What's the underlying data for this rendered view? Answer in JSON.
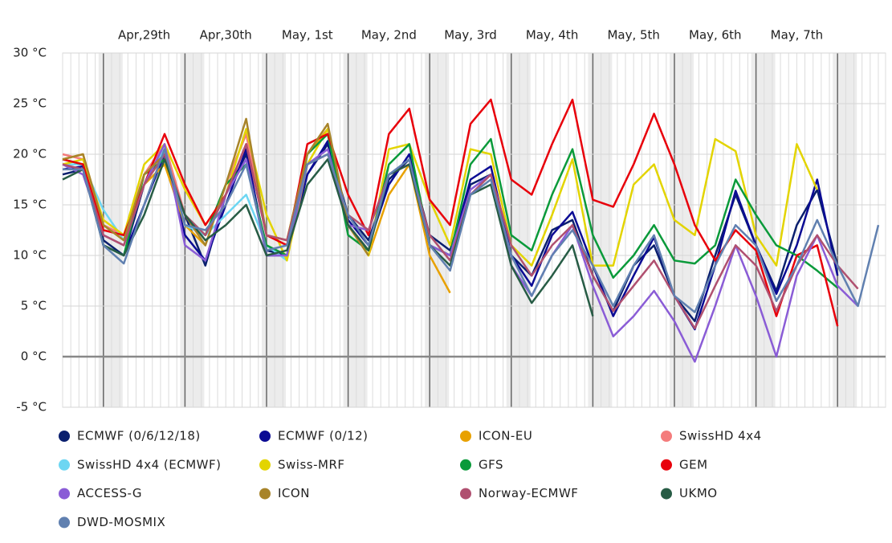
{
  "chart_data": {
    "type": "line",
    "categories": [
      null,
      null,
      null,
      null,
      "Apr,29th",
      null,
      null,
      null,
      "Apr,30th",
      null,
      null,
      null,
      "May, 1st",
      null,
      null,
      null,
      "May, 2nd",
      null,
      null,
      null,
      "May, 3rd",
      null,
      null,
      null,
      "May, 4th",
      null,
      null,
      null,
      "May, 5th",
      null,
      null,
      null,
      "May, 6th",
      null,
      null,
      null,
      "May, 7th",
      null,
      null,
      null,
      null
    ],
    "ylim": [
      -5,
      30
    ],
    "yticks": [
      {
        "value": -5,
        "label": "-5 °C"
      },
      {
        "value": 0,
        "label": "0 °C"
      },
      {
        "value": 5,
        "label": "5 °C"
      },
      {
        "value": 10,
        "label": "10 °C"
      },
      {
        "value": 15,
        "label": "15 °C"
      },
      {
        "value": 20,
        "label": "20 °C"
      },
      {
        "value": 25,
        "label": "25 °C"
      },
      {
        "value": 30,
        "label": "30 °C"
      }
    ],
    "grid": true,
    "series": [
      {
        "name": "ECMWF (0/6/12/18)",
        "color": "#0a1f6e",
        "values": [
          18,
          18.5,
          11.5,
          10,
          17,
          20.5,
          14,
          9,
          16,
          20,
          10.5,
          10,
          18,
          21,
          14,
          11.5,
          17.5,
          19.5,
          12,
          10.5,
          17,
          18,
          10,
          8,
          12.5,
          13.5,
          8,
          4.5,
          9,
          11,
          6,
          3.5,
          10,
          16,
          11,
          6.5,
          13,
          16.5,
          9,
          null,
          null
        ]
      },
      {
        "name": "ECMWF (0/12)",
        "color": "#0b0b94",
        "values": [
          18.5,
          18.8,
          11,
          10,
          15,
          20,
          12,
          9.5,
          15,
          20.5,
          10,
          10,
          18,
          21.3,
          13.5,
          11,
          17,
          20,
          11,
          10,
          17.5,
          18.8,
          10,
          7,
          12,
          14.3,
          9,
          4,
          8,
          11.8,
          6,
          2.7,
          9,
          16.4,
          11,
          6.2,
          11,
          17.5,
          8,
          null,
          null
        ]
      },
      {
        "name": "ICON-EU",
        "color": "#e8a100",
        "values": [
          19.5,
          20,
          13,
          11.5,
          17,
          19,
          13,
          11,
          17,
          22,
          12,
          11.5,
          20,
          22.5,
          13,
          10,
          16,
          19,
          10,
          6.3,
          null,
          null,
          null,
          null,
          null,
          null,
          null,
          null,
          null,
          null,
          null,
          null,
          null,
          null,
          null,
          null,
          null,
          null,
          null,
          null,
          null
        ]
      },
      {
        "name": "SwissHD 4x4",
        "color": "#f47c7c",
        "values": [
          20,
          19.5,
          13,
          12,
          18,
          21,
          14,
          12,
          17,
          22,
          12,
          11,
          null,
          null,
          null,
          null,
          null,
          null,
          null,
          null,
          null,
          null,
          null,
          null,
          null,
          null,
          null,
          null,
          null,
          null,
          null,
          null,
          null,
          null,
          null,
          null,
          null,
          null,
          null,
          null,
          null
        ]
      },
      {
        "name": "SwissHD 4x4 (ECMWF)",
        "color": "#6dd6f2",
        "values": [
          19,
          19,
          14.5,
          11.5,
          17,
          20.5,
          13,
          12,
          14,
          16,
          11,
          9.5,
          null,
          null,
          null,
          null,
          null,
          null,
          null,
          null,
          null,
          null,
          null,
          null,
          null,
          null,
          null,
          null,
          null,
          null,
          null,
          null,
          null,
          null,
          null,
          null,
          null,
          null,
          null,
          null,
          null
        ]
      },
      {
        "name": "Swiss-MRF",
        "color": "#e3d400",
        "values": [
          19,
          19.5,
          13.5,
          12,
          19,
          21,
          16.5,
          13,
          16,
          22.5,
          14,
          9.5,
          19,
          22.5,
          13,
          10,
          20.5,
          21,
          15.5,
          11,
          20.5,
          20,
          11,
          9,
          14,
          19.5,
          9,
          9,
          17,
          19,
          13.5,
          12,
          21.5,
          20.3,
          12,
          9,
          21,
          16.5,
          null,
          null,
          null
        ]
      },
      {
        "name": "GFS",
        "color": "#0a9a3a",
        "values": [
          19.5,
          19,
          11,
          10,
          18,
          19.5,
          14,
          12,
          17,
          19,
          11,
          10,
          20,
          22,
          12,
          10.5,
          19,
          21,
          11,
          10,
          19,
          21.5,
          12,
          10.5,
          16,
          20.5,
          12,
          7.8,
          10,
          13,
          9.5,
          9.2,
          11,
          17.5,
          14,
          11,
          10,
          8.5,
          6.8,
          null,
          null
        ]
      },
      {
        "name": "GEM",
        "color": "#e8000b",
        "values": [
          19.5,
          19,
          12.5,
          12,
          17,
          22,
          17,
          13,
          16,
          21,
          12,
          11,
          21,
          22,
          16,
          12,
          22,
          24.5,
          15.5,
          13,
          23,
          25.4,
          17.5,
          16,
          21,
          25.4,
          15.5,
          14.8,
          19,
          24,
          19,
          13,
          9.5,
          12.5,
          10.5,
          4,
          10,
          11,
          3,
          null,
          null
        ]
      },
      {
        "name": "ACCESS-G",
        "color": "#8a5cd6",
        "values": [
          19,
          18,
          12,
          11,
          17,
          21,
          11,
          9.5,
          16,
          19.5,
          10,
          10,
          19,
          20.5,
          13,
          12.5,
          18,
          19,
          11,
          10,
          16.5,
          18,
          9,
          6,
          10,
          13,
          7,
          2,
          4,
          6.5,
          3.5,
          -0.5,
          5,
          11,
          6,
          0,
          8,
          12,
          7,
          5,
          null
        ]
      },
      {
        "name": "ICON",
        "color": "#a8842a",
        "values": [
          19.5,
          20,
          13,
          11.5,
          18,
          20,
          14,
          11,
          17,
          23.5,
          12,
          11.5,
          20,
          23,
          13,
          10,
          null,
          null,
          null,
          null,
          null,
          null,
          null,
          null,
          null,
          null,
          null,
          null,
          null,
          null,
          null,
          null,
          null,
          null,
          null,
          null,
          null,
          null,
          null,
          null,
          null
        ]
      },
      {
        "name": "Norway-ECMWF",
        "color": "#b05070",
        "values": [
          19,
          18.5,
          12,
          11,
          17,
          20,
          14,
          12,
          16,
          21,
          12,
          11.5,
          19,
          20,
          14,
          12.5,
          18,
          19,
          12,
          9.5,
          16,
          18,
          11,
          8,
          11,
          13,
          8,
          4.5,
          7,
          9.5,
          6,
          2.8,
          7,
          11,
          9,
          4.5,
          9,
          12,
          9,
          6.7,
          null
        ]
      },
      {
        "name": "UKMO",
        "color": "#275c45",
        "values": [
          17.5,
          18.5,
          11,
          10,
          14,
          19.5,
          14,
          11.5,
          13,
          15,
          10,
          10.5,
          17,
          19.5,
          13,
          10.5,
          18,
          19,
          11,
          9,
          16,
          17,
          9,
          5.3,
          8,
          11,
          4,
          null,
          null,
          null,
          null,
          null,
          null,
          null,
          null,
          null,
          null,
          null,
          null,
          null,
          null
        ]
      },
      {
        "name": "DWD-MOSMIX",
        "color": "#6080b0",
        "values": [
          18.5,
          18.5,
          11,
          9.2,
          15,
          20.5,
          13,
          12.5,
          15,
          19,
          10.5,
          11,
          19,
          20,
          14,
          11,
          18,
          19.5,
          11,
          8.5,
          16,
          17.5,
          10,
          6,
          10,
          12.5,
          9,
          5,
          9,
          12,
          6,
          4.4,
          9,
          13,
          11,
          5.5,
          9,
          13.5,
          9,
          5,
          13
        ]
      }
    ]
  }
}
